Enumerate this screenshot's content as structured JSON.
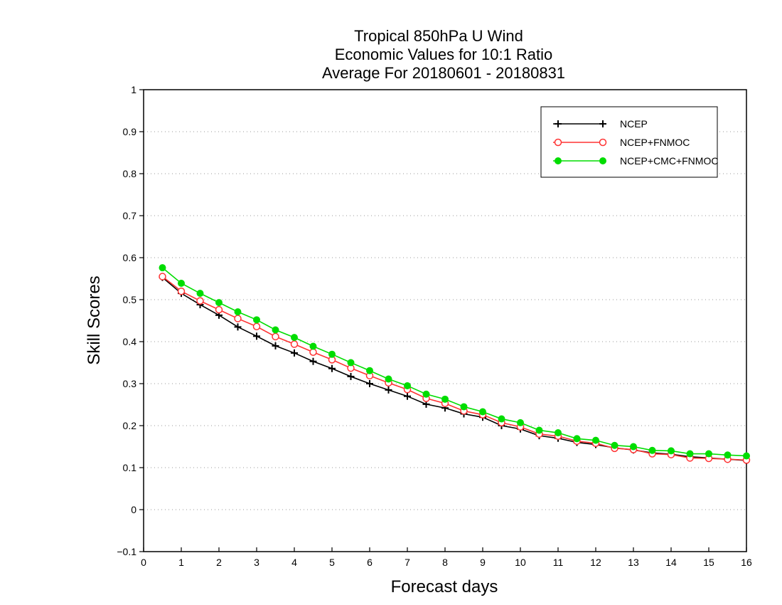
{
  "chart_data": {
    "type": "line",
    "title": [
      "Tropical 850hPa U Wind",
      "Economic Values for 10:1 Ratio",
      "Average For 20180601 - 20180831"
    ],
    "xlabel": "Forecast days",
    "ylabel": "Skill Scores",
    "xlim": [
      0,
      16
    ],
    "ylim": [
      -0.1,
      1
    ],
    "xticks": [
      "0",
      "1",
      "2",
      "3",
      "4",
      "5",
      "6",
      "7",
      "8",
      "9",
      "10",
      "11",
      "12",
      "13",
      "14",
      "15",
      "16"
    ],
    "yticks": [
      "-0.1",
      "0",
      "0.1",
      "0.2",
      "0.3",
      "0.4",
      "0.5",
      "0.6",
      "0.7",
      "0.8",
      "0.9",
      "1"
    ],
    "grid": "horizontal dotted",
    "legend_position": "top-right",
    "x": [
      0.5,
      1,
      1.5,
      2,
      2.5,
      3,
      3.5,
      4,
      4.5,
      5,
      5.5,
      6,
      6.5,
      7,
      7.5,
      8,
      8.5,
      9,
      9.5,
      10,
      10.5,
      11,
      11.5,
      12,
      12.5,
      13,
      13.5,
      14,
      14.5,
      15,
      15.5,
      16
    ],
    "series": [
      {
        "name": "NCEP",
        "color": "#000000",
        "marker": "plus",
        "values": [
          0.553,
          0.515,
          0.488,
          0.463,
          0.435,
          0.413,
          0.39,
          0.373,
          0.353,
          0.336,
          0.317,
          0.3,
          0.285,
          0.27,
          0.251,
          0.242,
          0.228,
          0.22,
          0.2,
          0.192,
          0.176,
          0.17,
          0.16,
          0.155,
          0.147,
          0.142,
          0.135,
          0.132,
          0.126,
          0.123,
          0.12,
          0.117
        ]
      },
      {
        "name": "NCEP+FNMOC",
        "color": "#ff3333",
        "marker": "open-circle",
        "values": [
          0.555,
          0.52,
          0.497,
          0.476,
          0.455,
          0.436,
          0.412,
          0.394,
          0.375,
          0.357,
          0.337,
          0.319,
          0.302,
          0.286,
          0.265,
          0.253,
          0.235,
          0.226,
          0.207,
          0.197,
          0.18,
          0.175,
          0.163,
          0.158,
          0.146,
          0.143,
          0.133,
          0.131,
          0.123,
          0.122,
          0.12,
          0.118
        ]
      },
      {
        "name": "NCEP+CMC+FNMOC",
        "color": "#00dd00",
        "marker": "filled-circle",
        "values": [
          0.576,
          0.539,
          0.515,
          0.493,
          0.471,
          0.452,
          0.428,
          0.41,
          0.389,
          0.37,
          0.35,
          0.331,
          0.311,
          0.295,
          0.275,
          0.263,
          0.245,
          0.233,
          0.216,
          0.207,
          0.189,
          0.183,
          0.169,
          0.165,
          0.153,
          0.15,
          0.141,
          0.14,
          0.133,
          0.133,
          0.13,
          0.128
        ]
      }
    ]
  }
}
